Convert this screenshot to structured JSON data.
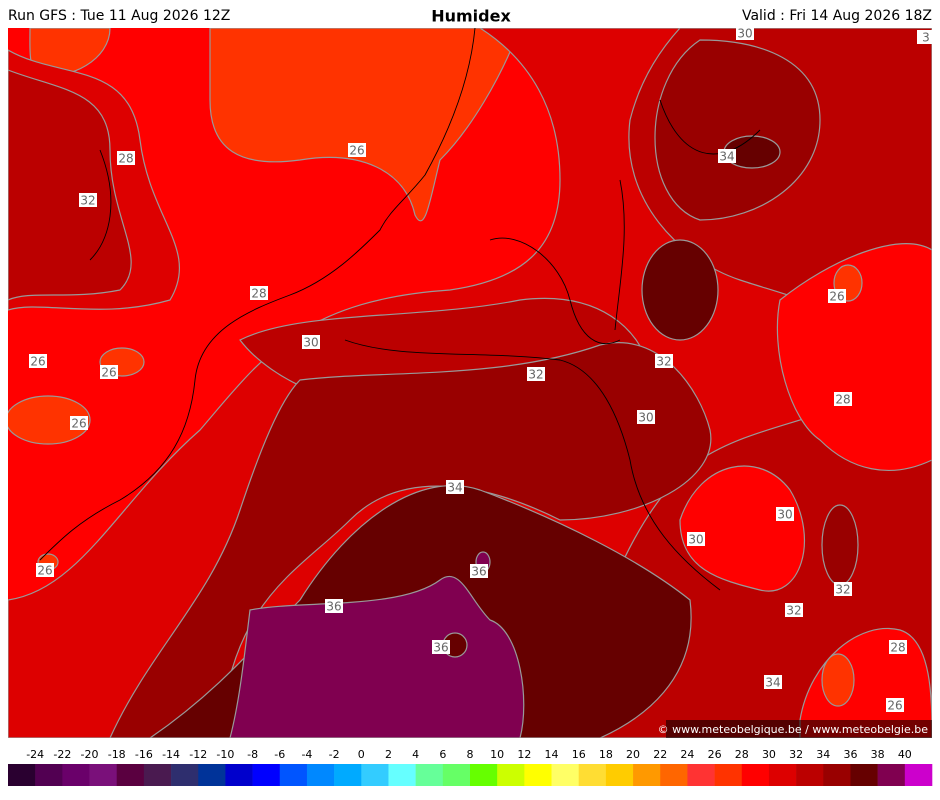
{
  "header": {
    "run": "Run GFS : Tue 11 Aug 2026 12Z",
    "title": "Humidex",
    "valid": "Valid : Fri 14 Aug 2026 18Z"
  },
  "contour_labels": [
    "30",
    "3",
    "28",
    "32",
    "26",
    "34",
    "28",
    "26",
    "30",
    "32",
    "26",
    "26",
    "26",
    "32",
    "30",
    "28",
    "34",
    "30",
    "30",
    "26",
    "36",
    "32",
    "36",
    "32",
    "36",
    "28",
    "34",
    "26"
  ],
  "copyright": "© www.meteobelgique.be / www.meteobelgie.be",
  "colorbar": {
    "ticks": [
      -24,
      -22,
      -20,
      -18,
      -16,
      -14,
      -12,
      -10,
      -8,
      -6,
      -4,
      -2,
      0,
      2,
      4,
      6,
      8,
      10,
      12,
      14,
      16,
      18,
      20,
      22,
      24,
      26,
      28,
      30,
      32,
      34,
      36,
      38,
      40
    ],
    "colors": [
      "#2a0030",
      "#520052",
      "#6a006a",
      "#7a107a",
      "#5a0040",
      "#4a1a50",
      "#2e2e6e",
      "#003399",
      "#0000cc",
      "#0000ff",
      "#0055ff",
      "#0088ff",
      "#00aaff",
      "#33ccff",
      "#66ffff",
      "#66ff99",
      "#66ff66",
      "#66ff00",
      "#ccff00",
      "#ffff00",
      "#ffff66",
      "#ffdd33",
      "#ffcc00",
      "#ff9900",
      "#ff6600",
      "#ff3333",
      "#ff3300",
      "#ff0000",
      "#dd0000",
      "#bb0000",
      "#990000",
      "#660000",
      "#800050",
      "#cc00cc"
    ]
  }
}
